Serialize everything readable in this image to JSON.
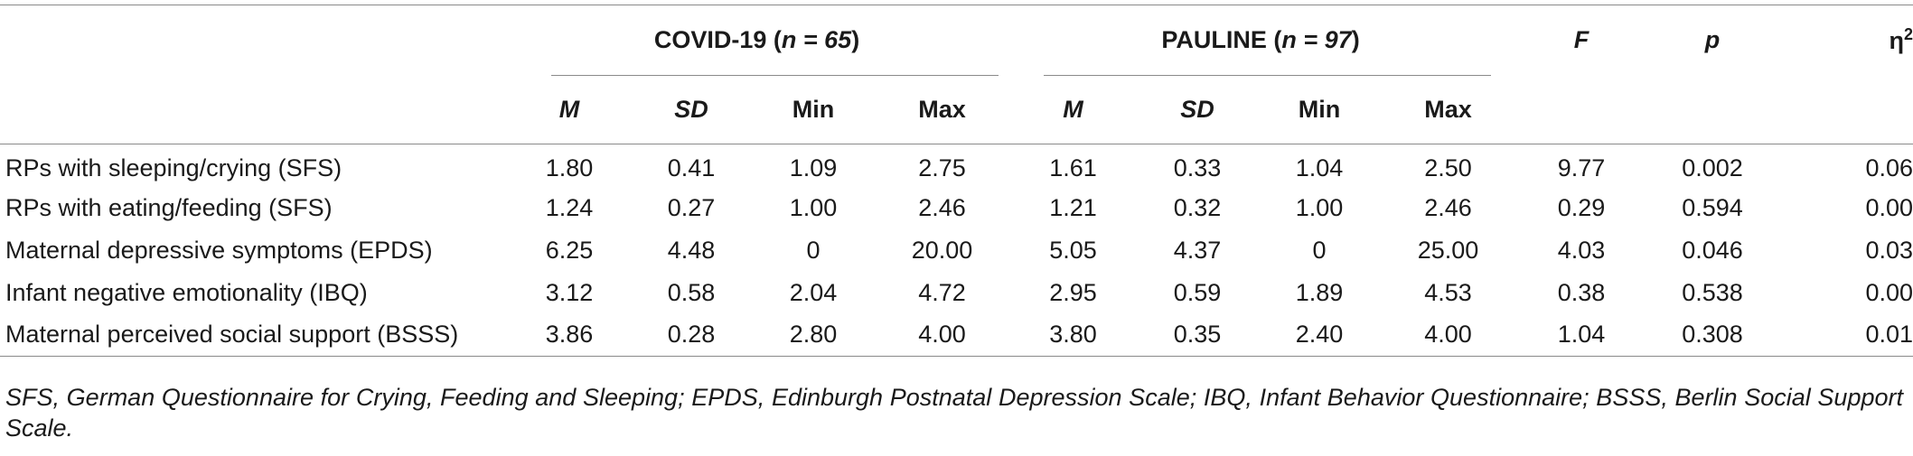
{
  "table": {
    "groups": [
      {
        "label": "COVID-19",
        "n_text": "n = 65"
      },
      {
        "label": "PAULINE",
        "n_text": "n = 97"
      }
    ],
    "stat_headers": {
      "F": "F",
      "p": "p",
      "eta": "η",
      "eta_sup": "2"
    },
    "sub_headers": {
      "M": "M",
      "SD": "SD",
      "Min": "Min",
      "Max": "Max"
    },
    "rows": [
      {
        "label": "RPs with sleeping/crying (SFS)",
        "c_m": "1.80",
        "c_sd": "0.41",
        "c_min": "1.09",
        "c_max": "2.75",
        "p_m": "1.61",
        "p_sd": "0.33",
        "p_min": "1.04",
        "p_max": "2.50",
        "F": "9.77",
        "p": "0.002",
        "eta2": "0.06"
      },
      {
        "label": "RPs with eating/feeding (SFS)",
        "c_m": "1.24",
        "c_sd": "0.27",
        "c_min": "1.00",
        "c_max": "2.46",
        "p_m": "1.21",
        "p_sd": "0.32",
        "p_min": "1.00",
        "p_max": "2.46",
        "F": "0.29",
        "p": "0.594",
        "eta2": "0.00"
      },
      {
        "label": "Maternal depressive symptoms (EPDS)",
        "c_m": "6.25",
        "c_sd": "4.48",
        "c_min": "0",
        "c_max": "20.00",
        "p_m": "5.05",
        "p_sd": "4.37",
        "p_min": "0",
        "p_max": "25.00",
        "F": "4.03",
        "p": "0.046",
        "eta2": "0.03"
      },
      {
        "label": "Infant negative emotionality (IBQ)",
        "c_m": "3.12",
        "c_sd": "0.58",
        "c_min": "2.04",
        "c_max": "4.72",
        "p_m": "2.95",
        "p_sd": "0.59",
        "p_min": "1.89",
        "p_max": "4.53",
        "F": "0.38",
        "p": "0.538",
        "eta2": "0.00"
      },
      {
        "label": "Maternal perceived social support (BSSS)",
        "c_m": "3.86",
        "c_sd": "0.28",
        "c_min": "2.80",
        "c_max": "4.00",
        "p_m": "3.80",
        "p_sd": "0.35",
        "p_min": "2.40",
        "p_max": "4.00",
        "F": "1.04",
        "p": "0.308",
        "eta2": "0.01"
      }
    ]
  },
  "footnote": "SFS, German Questionnaire for Crying, Feeding and Sleeping; EPDS, Edinburgh Postnatal Depression Scale; IBQ, Infant Behavior Questionnaire; BSSS, Berlin Social Support Scale."
}
